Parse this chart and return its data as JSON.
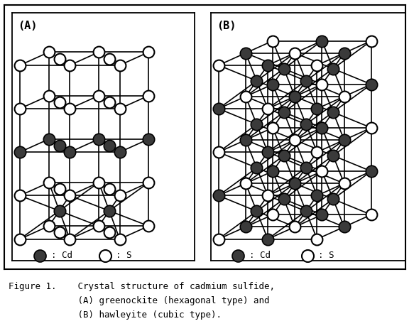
{
  "fig_width": 5.83,
  "fig_height": 4.59,
  "background_color": "#ffffff",
  "line_color": "#000000",
  "cd_color": "#3a3a3a",
  "s_color": "#ffffff",
  "panel_A_label": "(A)",
  "panel_B_label": "(B)",
  "legend_Cd_label": ": Cd",
  "legend_S_label": ": S",
  "caption_lines": [
    "Figure 1.    Crystal structure of cadmium sulfide,",
    "             (A) greenockite (hexagonal type) and",
    "             (B) hawleyite (cubic type)."
  ],
  "caption_fontsize": 9.0
}
